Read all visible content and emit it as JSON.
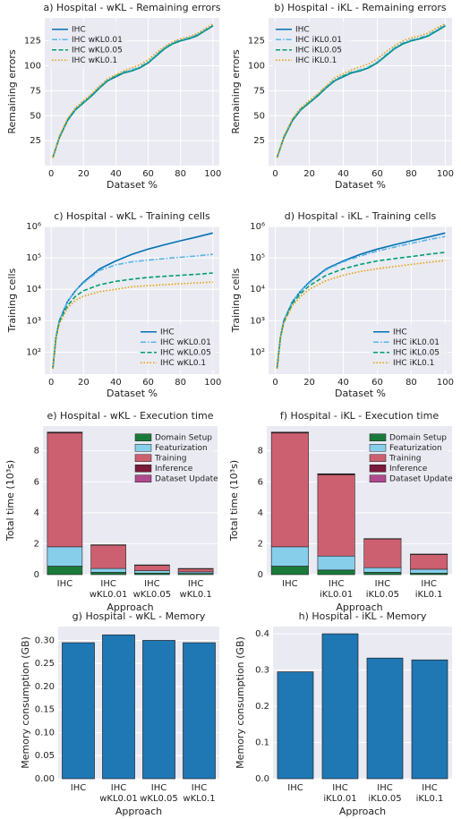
{
  "chart_data": [
    {
      "type": "line",
      "title": "a) Hospital - wKL - Remaining errors",
      "xlabel": "Dataset %",
      "ylabel": "Remaining errors",
      "x": [
        1,
        5,
        10,
        15,
        20,
        25,
        30,
        35,
        40,
        45,
        50,
        55,
        60,
        65,
        70,
        75,
        80,
        85,
        90,
        95,
        100
      ],
      "xlim": [
        -4,
        104
      ],
      "xticks": [
        0,
        20,
        40,
        60,
        80,
        100
      ],
      "ylim": [
        0,
        148
      ],
      "yticks": [
        25,
        50,
        75,
        100,
        125
      ],
      "grid": true,
      "legend": "upper left",
      "series": [
        {
          "name": "IHC",
          "color": "#0072b2",
          "linestyle": "solid",
          "values": [
            8,
            28,
            45,
            56,
            63,
            70,
            78,
            85,
            89,
            93,
            95,
            98,
            103,
            110,
            117,
            122,
            125,
            127,
            130,
            135,
            140
          ]
        },
        {
          "name": "IHC wKL0.01",
          "color": "#56b4e9",
          "linestyle": "dashdot",
          "values": [
            8,
            29,
            46,
            57,
            64,
            71,
            79,
            86,
            90,
            94,
            96,
            99,
            104,
            111,
            118,
            123,
            126,
            128,
            131,
            136,
            141
          ]
        },
        {
          "name": "IHC wKL0.05",
          "color": "#009e73",
          "linestyle": "dashed",
          "values": [
            8,
            28,
            45,
            56,
            63,
            70,
            78,
            85,
            90,
            93,
            95,
            98,
            103,
            110,
            117,
            122,
            125,
            127,
            130,
            135,
            140
          ]
        },
        {
          "name": "IHC wKL0.1",
          "color": "#e69f00",
          "linestyle": "dotted",
          "values": [
            8,
            29,
            47,
            58,
            65,
            72,
            80,
            87,
            91,
            95,
            98,
            101,
            106,
            113,
            119,
            124,
            127,
            129,
            132,
            137,
            142
          ]
        }
      ]
    },
    {
      "type": "line",
      "title": "b) Hospital - iKL - Remaining errors",
      "xlabel": "Dataset %",
      "ylabel": "Remaining errors",
      "x": [
        1,
        5,
        10,
        15,
        20,
        25,
        30,
        35,
        40,
        45,
        50,
        55,
        60,
        65,
        70,
        75,
        80,
        85,
        90,
        95,
        100
      ],
      "xlim": [
        -4,
        104
      ],
      "xticks": [
        0,
        20,
        40,
        60,
        80,
        100
      ],
      "ylim": [
        0,
        148
      ],
      "yticks": [
        25,
        50,
        75,
        100,
        125
      ],
      "grid": true,
      "legend": "upper left",
      "series": [
        {
          "name": "IHC",
          "color": "#0072b2",
          "linestyle": "solid",
          "values": [
            8,
            28,
            45,
            56,
            63,
            70,
            78,
            85,
            89,
            93,
            95,
            98,
            103,
            110,
            117,
            122,
            125,
            127,
            130,
            135,
            140
          ]
        },
        {
          "name": "IHC iKL0.01",
          "color": "#56b4e9",
          "linestyle": "dashdot",
          "values": [
            8,
            29,
            46,
            57,
            64,
            71,
            79,
            86,
            90,
            94,
            96,
            99,
            104,
            111,
            118,
            123,
            126,
            128,
            131,
            136,
            141
          ]
        },
        {
          "name": "IHC iKL0.05",
          "color": "#009e73",
          "linestyle": "dashed",
          "values": [
            8,
            28,
            45,
            56,
            63,
            70,
            78,
            85,
            90,
            93,
            95,
            98,
            103,
            110,
            117,
            122,
            125,
            127,
            130,
            135,
            140
          ]
        },
        {
          "name": "IHC iKL0.1",
          "color": "#e69f00",
          "linestyle": "dotted",
          "values": [
            8,
            29,
            47,
            58,
            65,
            72,
            80,
            88,
            92,
            96,
            99,
            102,
            107,
            114,
            120,
            125,
            128,
            130,
            133,
            138,
            142
          ]
        }
      ]
    },
    {
      "type": "line",
      "title": "c) Hospital - wKL - Training cells",
      "xlabel": "Dataset %",
      "ylabel": "Training cells",
      "ylog": true,
      "x": [
        1,
        3,
        5,
        10,
        15,
        20,
        30,
        40,
        50,
        60,
        70,
        80,
        90,
        100
      ],
      "xlim": [
        -4,
        104
      ],
      "xticks": [
        0,
        20,
        40,
        60,
        80,
        100
      ],
      "ylim": [
        20,
        1000000
      ],
      "yticks": [
        {
          "value": 100,
          "label": "10²"
        },
        {
          "value": 1000,
          "label": "10³"
        },
        {
          "value": 10000,
          "label": "10⁴"
        },
        {
          "value": 100000,
          "label": "10⁵"
        },
        {
          "value": 1000000,
          "label": "10⁶"
        }
      ],
      "grid": true,
      "legend": "lower right",
      "series": [
        {
          "name": "IHC",
          "color": "#0072b2",
          "linestyle": "solid",
          "values": [
            30,
            300,
            1000,
            4000,
            9000,
            17000,
            45000,
            80000,
            130000,
            190000,
            260000,
            350000,
            460000,
            620000
          ]
        },
        {
          "name": "IHC wKL0.01",
          "color": "#56b4e9",
          "linestyle": "dashdot",
          "values": [
            30,
            300,
            1000,
            4000,
            9000,
            16000,
            40000,
            60000,
            75000,
            85000,
            95000,
            105000,
            115000,
            130000
          ]
        },
        {
          "name": "IHC wKL0.05",
          "color": "#009e73",
          "linestyle": "dashed",
          "values": [
            30,
            300,
            900,
            3000,
            6000,
            9000,
            14000,
            18000,
            21000,
            24000,
            26000,
            28000,
            30000,
            33000
          ]
        },
        {
          "name": "IHC wKL0.1",
          "color": "#e69f00",
          "linestyle": "dotted",
          "values": [
            30,
            280,
            800,
            2500,
            4500,
            6000,
            8500,
            10000,
            12000,
            13000,
            14000,
            15000,
            16000,
            17000
          ]
        }
      ]
    },
    {
      "type": "line",
      "title": "d) Hospital - iKL - Training cells",
      "xlabel": "Dataset %",
      "ylabel": "Training cells",
      "ylog": true,
      "x": [
        1,
        3,
        5,
        10,
        15,
        20,
        30,
        40,
        50,
        60,
        70,
        80,
        90,
        100
      ],
      "xlim": [
        -4,
        104
      ],
      "xticks": [
        0,
        20,
        40,
        60,
        80,
        100
      ],
      "ylim": [
        20,
        1000000
      ],
      "yticks": [
        {
          "value": 100,
          "label": "10²"
        },
        {
          "value": 1000,
          "label": "10³"
        },
        {
          "value": 10000,
          "label": "10⁴"
        },
        {
          "value": 100000,
          "label": "10⁵"
        },
        {
          "value": 1000000,
          "label": "10⁶"
        }
      ],
      "grid": true,
      "legend": "lower right",
      "series": [
        {
          "name": "IHC",
          "color": "#0072b2",
          "linestyle": "solid",
          "values": [
            30,
            300,
            1000,
            4000,
            9000,
            17000,
            45000,
            80000,
            130000,
            190000,
            260000,
            350000,
            460000,
            620000
          ]
        },
        {
          "name": "IHC iKL0.01",
          "color": "#56b4e9",
          "linestyle": "dashdot",
          "values": [
            30,
            300,
            1000,
            4000,
            9000,
            16000,
            42000,
            75000,
            115000,
            165000,
            220000,
            290000,
            380000,
            480000
          ]
        },
        {
          "name": "IHC iKL0.05",
          "color": "#009e73",
          "linestyle": "dashed",
          "values": [
            30,
            300,
            900,
            3500,
            7500,
            13000,
            28000,
            45000,
            62000,
            80000,
            95000,
            110000,
            130000,
            150000
          ]
        },
        {
          "name": "IHC iKL0.1",
          "color": "#e69f00",
          "linestyle": "dotted",
          "values": [
            30,
            280,
            850,
            3000,
            6000,
            10000,
            19000,
            28000,
            37000,
            45000,
            53000,
            62000,
            72000,
            82000
          ]
        }
      ]
    },
    {
      "type": "bar",
      "stacked": true,
      "title": "e) Hospital - wKL - Execution time",
      "xlabel": "Approach",
      "ylabel": "Total time (10³s)",
      "categories": [
        "IHC",
        "IHC\nwKL0.01",
        "IHC\nwKL0.05",
        "IHC\nwKL0.1"
      ],
      "ylim": [
        0,
        9.6
      ],
      "yticks": [
        0,
        2,
        4,
        6,
        8
      ],
      "grid": true,
      "legend": "upper right",
      "series": [
        {
          "name": "Domain Setup",
          "color": "#1a7a3a",
          "values": [
            0.55,
            0.15,
            0.1,
            0.08
          ]
        },
        {
          "name": "Featurization",
          "color": "#87ceeb",
          "values": [
            1.25,
            0.25,
            0.15,
            0.1
          ]
        },
        {
          "name": "Training",
          "color": "#cd6070",
          "values": [
            7.35,
            1.5,
            0.35,
            0.2
          ]
        },
        {
          "name": "Inference",
          "color": "#7b1a3a",
          "values": [
            0.05,
            0.02,
            0.02,
            0.01
          ]
        },
        {
          "name": "Dataset Update",
          "color": "#b04a8e",
          "values": [
            0.01,
            0.01,
            0.01,
            0.01
          ]
        }
      ]
    },
    {
      "type": "bar",
      "stacked": true,
      "title": "f) Hospital - iKL - Execution time",
      "xlabel": "Approach",
      "ylabel": "Total time (10³s)",
      "categories": [
        "IHC",
        "IHC\niKL0.01",
        "IHC\niKL0.05",
        "IHC\niKL0.1"
      ],
      "ylim": [
        0,
        9.6
      ],
      "yticks": [
        0,
        2,
        4,
        6,
        8
      ],
      "grid": true,
      "legend": "upper right",
      "series": [
        {
          "name": "Domain Setup",
          "color": "#1a7a3a",
          "values": [
            0.55,
            0.3,
            0.15,
            0.1
          ]
        },
        {
          "name": "Featurization",
          "color": "#87ceeb",
          "values": [
            1.25,
            0.9,
            0.3,
            0.25
          ]
        },
        {
          "name": "Training",
          "color": "#cd6070",
          "values": [
            7.35,
            5.25,
            1.85,
            0.95
          ]
        },
        {
          "name": "Inference",
          "color": "#7b1a3a",
          "values": [
            0.05,
            0.05,
            0.02,
            0.02
          ]
        },
        {
          "name": "Dataset Update",
          "color": "#b04a8e",
          "values": [
            0.01,
            0.02,
            0.01,
            0.01
          ]
        }
      ]
    },
    {
      "type": "bar",
      "title": "g) Hospital - wKL - Memory",
      "xlabel": "Approach",
      "ylabel": "Memory consumption (GB)",
      "categories": [
        "IHC",
        "IHC\nwKL0.01",
        "IHC\nwKL0.05",
        "IHC\nwKL0.1"
      ],
      "color": "#1f77b4",
      "values": [
        0.295,
        0.312,
        0.3,
        0.295
      ],
      "ylim": [
        0,
        0.33
      ],
      "yticks": [
        {
          "value": 0,
          "label": "0.00"
        },
        0.05,
        {
          "value": 0.1,
          "label": "0.10"
        },
        0.15,
        {
          "value": 0.2,
          "label": "0.20"
        },
        0.25,
        {
          "value": 0.3,
          "label": "0.30"
        }
      ],
      "grid": true
    },
    {
      "type": "bar",
      "title": "h) Hospital - iKL - Memory",
      "xlabel": "Approach",
      "ylabel": "Memory consumption (GB)",
      "categories": [
        "IHC",
        "IHC\niKL0.01",
        "IHC\niKL0.05",
        "IHC\niKL0.1"
      ],
      "color": "#1f77b4",
      "values": [
        0.295,
        0.4,
        0.333,
        0.328
      ],
      "ylim": [
        0,
        0.42
      ],
      "yticks": [
        {
          "value": 0,
          "label": "0.0"
        },
        0.1,
        0.2,
        0.3,
        0.4
      ],
      "grid": true
    }
  ]
}
